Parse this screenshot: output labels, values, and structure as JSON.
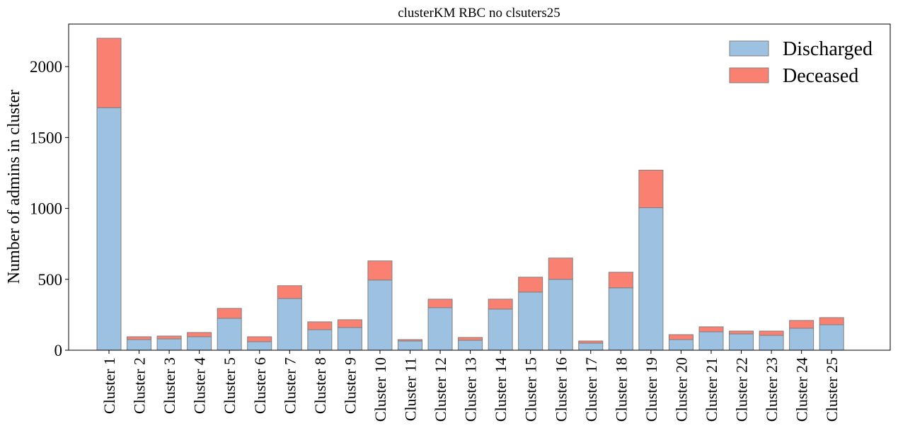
{
  "chart_data": {
    "type": "bar",
    "stacked": true,
    "title": "clusterKM RBC no clsuters25",
    "xlabel": "",
    "ylabel": "Number of admins in cluster",
    "ylim": [
      0,
      2300
    ],
    "yticks": [
      0,
      500,
      1000,
      1500,
      2000
    ],
    "grid": false,
    "legend_position": "top-right",
    "categories": [
      "Cluster 1",
      "Cluster 2",
      "Cluster 3",
      "Cluster 4",
      "Cluster 5",
      "Cluster 6",
      "Cluster 7",
      "Cluster 8",
      "Cluster 9",
      "Cluster 10",
      "Cluster 11",
      "Cluster 12",
      "Cluster 13",
      "Cluster 14",
      "Cluster 15",
      "Cluster 16",
      "Cluster 17",
      "Cluster 18",
      "Cluster 19",
      "Cluster 20",
      "Cluster 21",
      "Cluster 22",
      "Cluster 23",
      "Cluster 24",
      "Cluster 25"
    ],
    "series": [
      {
        "name": "Discharged",
        "color": "#9dc1e1",
        "values": [
          1710,
          75,
          80,
          95,
          225,
          60,
          365,
          145,
          160,
          495,
          65,
          300,
          70,
          290,
          410,
          500,
          50,
          440,
          1005,
          75,
          130,
          115,
          105,
          155,
          180
        ]
      },
      {
        "name": "Deceased",
        "color": "#fa8072",
        "values": [
          490,
          20,
          20,
          30,
          70,
          35,
          90,
          55,
          55,
          135,
          10,
          60,
          20,
          70,
          105,
          150,
          15,
          110,
          265,
          35,
          35,
          20,
          30,
          55,
          50
        ]
      }
    ],
    "edge_color": "#808080"
  }
}
